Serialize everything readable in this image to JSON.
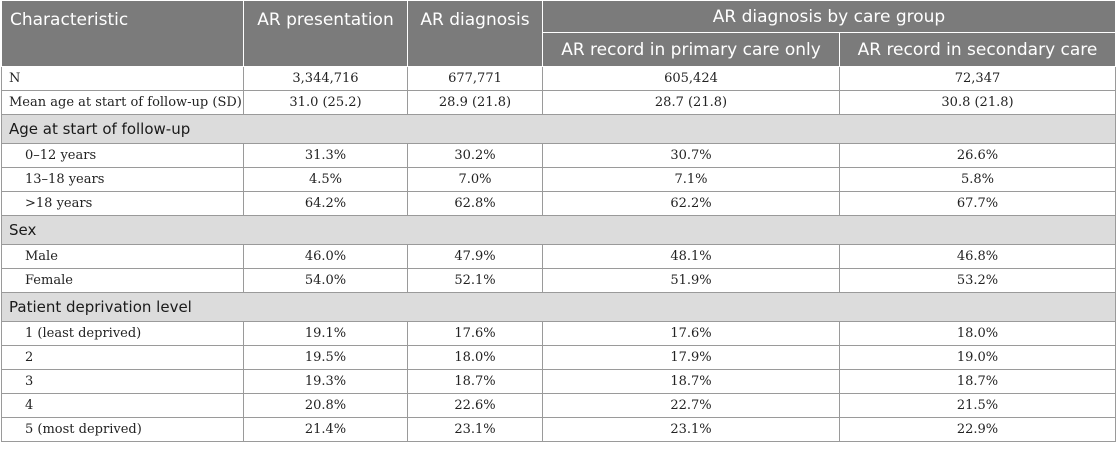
{
  "header": {
    "characteristic": "Characteristic",
    "ar_presentation": "AR presentation",
    "ar_diagnosis": "AR diagnosis",
    "by_care_group": "AR diagnosis by care group",
    "primary_only": "AR record in primary care only",
    "secondary": "AR record in secondary care"
  },
  "rows": {
    "n": {
      "label": "N",
      "v": [
        "3,344,716",
        "677,771",
        "605,424",
        "72,347"
      ]
    },
    "mean_age": {
      "label": "Mean age at start of follow-up (SD)",
      "v": [
        "31.0 (25.2)",
        "28.9 (21.8)",
        "28.7 (21.8)",
        "30.8 (21.8)"
      ]
    }
  },
  "sections": {
    "age": {
      "title": "Age at start of follow-up",
      "rows": [
        {
          "label": "0–12 years",
          "v": [
            "31.3%",
            "30.2%",
            "30.7%",
            "26.6%"
          ]
        },
        {
          "label": "13–18 years",
          "v": [
            "4.5%",
            "7.0%",
            "7.1%",
            "5.8%"
          ]
        },
        {
          "label": ">18 years",
          "v": [
            "64.2%",
            "62.8%",
            "62.2%",
            "67.7%"
          ]
        }
      ]
    },
    "sex": {
      "title": "Sex",
      "rows": [
        {
          "label": "Male",
          "v": [
            "46.0%",
            "47.9%",
            "48.1%",
            "46.8%"
          ]
        },
        {
          "label": "Female",
          "v": [
            "54.0%",
            "52.1%",
            "51.9%",
            "53.2%"
          ]
        }
      ]
    },
    "deprivation": {
      "title": "Patient deprivation level",
      "rows": [
        {
          "label": "1 (least deprived)",
          "v": [
            "19.1%",
            "17.6%",
            "17.6%",
            "18.0%"
          ]
        },
        {
          "label": "2",
          "v": [
            "19.5%",
            "18.0%",
            "17.9%",
            "19.0%"
          ]
        },
        {
          "label": "3",
          "v": [
            "19.3%",
            "18.7%",
            "18.7%",
            "18.7%"
          ]
        },
        {
          "label": "4",
          "v": [
            "20.8%",
            "22.6%",
            "22.7%",
            "21.5%"
          ]
        },
        {
          "label": "5 (most deprived)",
          "v": [
            "21.4%",
            "23.1%",
            "23.1%",
            "22.9%"
          ]
        }
      ]
    }
  }
}
